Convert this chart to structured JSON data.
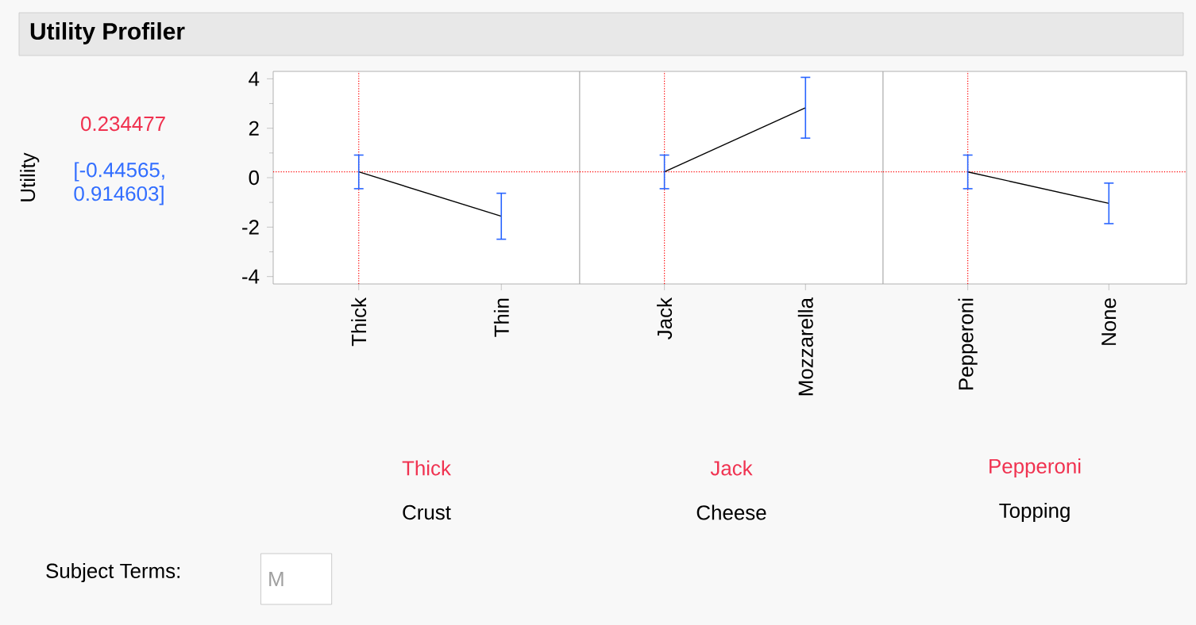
{
  "chart_data": [
    {
      "type": "line",
      "title": "Utility Profiler",
      "ylabel": "Utility",
      "xlabel": "Crust",
      "categories": [
        "Thick",
        "Thin"
      ],
      "values": [
        0.234477,
        -1.56
      ],
      "errors": [
        [
          -0.44565,
          0.914603
        ],
        0.93
      ],
      "color": "#000000",
      "ylim": [
        -4.3,
        4.3
      ],
      "yticks": [
        -4,
        {
          "value": -3,
          "label": null
        },
        -2,
        {
          "value": -1,
          "label": null
        },
        0,
        {
          "value": 1,
          "label": null
        },
        2,
        {
          "value": 3,
          "label": null
        },
        4
      ],
      "ref_lines": [
        {
          "axis": "x",
          "value": "Thick",
          "color": "#ff0000",
          "line_style": "dotted"
        },
        {
          "axis": "y",
          "value": 0.234477,
          "color": "#ff0000",
          "line_style": "dotted"
        }
      ],
      "annotations": [
        "Thick",
        "0.234477",
        "[-0.44565, 0.914603]",
        "Subject Terms:",
        "M"
      ]
    },
    {
      "type": "line",
      "xlabel": "Cheese",
      "categories": [
        "Jack",
        "Mozzarella"
      ],
      "values": [
        0.234477,
        2.83
      ],
      "errors": [
        [
          -0.44565,
          0.914603
        ],
        1.23
      ],
      "color": "#000000",
      "ylim": [
        -4.3,
        4.3
      ],
      "tick_labels": "x",
      "ref_lines": [
        {
          "axis": "x",
          "value": "Jack",
          "color": "#ff0000",
          "line_style": "dotted"
        },
        {
          "axis": "y",
          "value": 0.234477,
          "color": "#ff0000",
          "line_style": "dotted"
        }
      ],
      "annotations": [
        "Jack"
      ]
    },
    {
      "type": "line",
      "xlabel": "Topping",
      "categories": [
        "Pepperoni",
        "None"
      ],
      "values": [
        0.234477,
        -1.04
      ],
      "errors": [
        [
          -0.44565,
          0.914603
        ],
        0.82
      ],
      "color": "#000000",
      "ylim": [
        -4.3,
        4.3
      ],
      "tick_labels": "x",
      "ref_lines": [
        {
          "axis": "x",
          "value": "Pepperoni",
          "color": "#ff0000",
          "line_style": "dotted"
        },
        {
          "axis": "y",
          "value": 0.234477,
          "color": "#ff0000",
          "line_style": "dotted"
        }
      ],
      "annotations": [
        "Pepperoni"
      ]
    }
  ]
}
